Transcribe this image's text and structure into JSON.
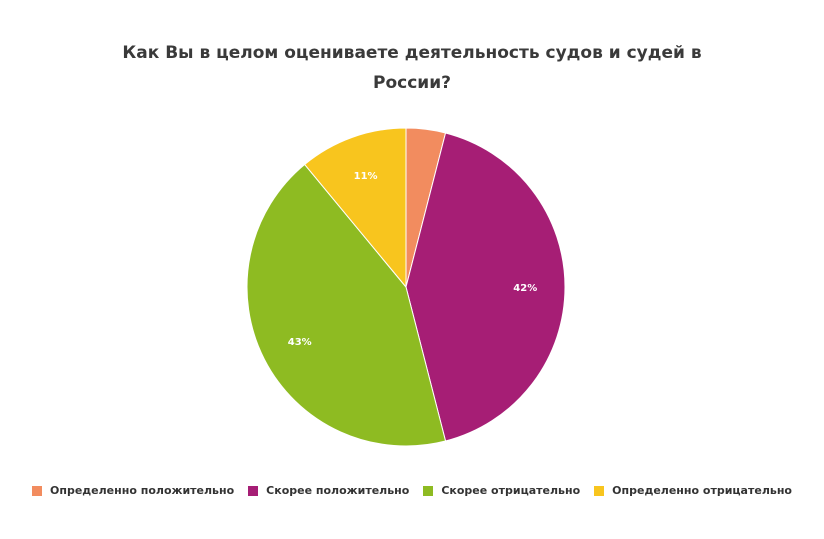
{
  "chart_data": {
    "type": "pie",
    "title": "Как Вы в целом оцениваете деятельность судов и судей в России?",
    "slices": [
      {
        "name": "Определенно положительно",
        "value": 4,
        "label": "",
        "color": "#f28c5f"
      },
      {
        "name": "Скорее положительно",
        "value": 42,
        "label": "42%",
        "color": "#a61e75"
      },
      {
        "name": "Скорее отрицательно",
        "value": 43,
        "label": "43%",
        "color": "#8ebb22"
      },
      {
        "name": "Определенно отрицательно",
        "value": 11,
        "label": "11%",
        "color": "#f8c51e"
      }
    ],
    "legend_position": "bottom"
  }
}
